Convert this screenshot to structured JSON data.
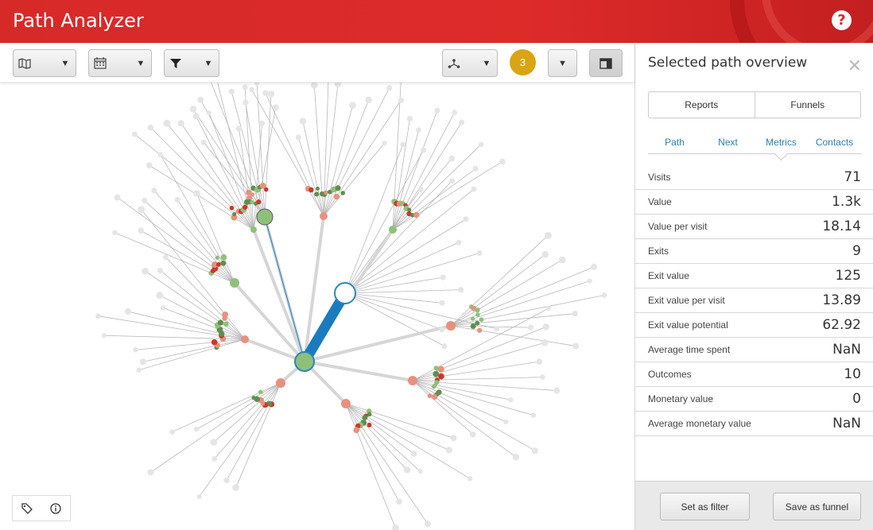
{
  "header": {
    "title": "Path Analyzer",
    "help_icon": "?"
  },
  "toolbar": {
    "map_icon": "map-icon",
    "calendar_icon": "calendar-icon",
    "filter_icon": "filter-icon",
    "network_icon": "network-icon",
    "layout_icon": "layout-icon",
    "dropdown_glyph": "▼",
    "badge_count": "3"
  },
  "panel": {
    "title": "Selected path overview",
    "close_glyph": "✕",
    "segments": [
      "Reports",
      "Funnels"
    ],
    "tabs": [
      "Path",
      "Next",
      "Metrics",
      "Contacts"
    ],
    "active_tab": "Metrics",
    "metrics": [
      {
        "label": "Visits",
        "value": "71"
      },
      {
        "label": "Value",
        "value": "1.3k"
      },
      {
        "label": "Value per visit",
        "value": "18.14"
      },
      {
        "label": "Exits",
        "value": "9"
      },
      {
        "label": "Exit value",
        "value": "125"
      },
      {
        "label": "Exit value per visit",
        "value": "13.89"
      },
      {
        "label": "Exit value potential",
        "value": "62.92"
      },
      {
        "label": "Average time spent",
        "value": "NaN"
      },
      {
        "label": "Outcomes",
        "value": "10"
      },
      {
        "label": "Monetary value",
        "value": "0"
      },
      {
        "label": "Average monetary value",
        "value": "NaN"
      }
    ],
    "footer": {
      "filter_label": "Set as filter",
      "funnel_label": "Save as funnel"
    }
  },
  "bottom_tools": {
    "tag_icon": "tag-icon",
    "info_icon": "info-icon"
  },
  "colors": {
    "header": "#d62a29",
    "accent_blue": "#1a7bbf",
    "badge": "#d9a512",
    "node_green": "#8fc07a",
    "node_red": "#e8907e",
    "node_gray": "#e5e5e5"
  }
}
